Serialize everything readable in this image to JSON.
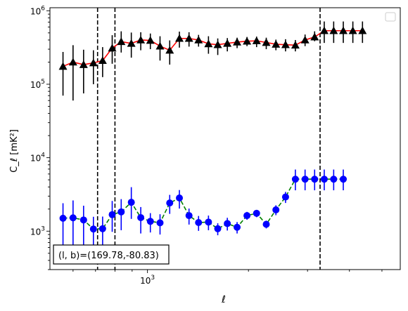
{
  "chart_data": {
    "type": "scatter",
    "xlabel": "ℓ",
    "ylabel": "C_ℓ [mK²]",
    "xscale": "log",
    "yscale": "log",
    "xlim": [
      512,
      5670
    ],
    "ylim": [
      300,
      1100000
    ],
    "xticks": [
      {
        "value": 1000,
        "base": "10",
        "exp": "3"
      }
    ],
    "yticks": [
      {
        "value": 1000,
        "base": "10",
        "exp": "3"
      },
      {
        "value": 10000,
        "base": "10",
        "exp": "4"
      },
      {
        "value": 100000,
        "base": "10",
        "exp": "5"
      },
      {
        "value": 1000000,
        "base": "10",
        "exp": "6"
      }
    ],
    "vlines": [
      710,
      800,
      3270
    ],
    "annotation": "(l, b)=(169.78,-80.83)",
    "legend": "top-right",
    "series": [
      {
        "marker": "triangle",
        "marker_color": "#000000",
        "line_color": "#ff0000",
        "line_style": "solid",
        "x": [
          560,
          600,
          645,
          690,
          735,
          785,
          835,
          895,
          955,
          1020,
          1090,
          1165,
          1245,
          1330,
          1420,
          1520,
          1620,
          1730,
          1850,
          1980,
          2115,
          2260,
          2415,
          2580,
          2760,
          2950,
          3150,
          3365,
          3590,
          3835,
          4095,
          4375
        ],
        "y": [
          175000,
          200000,
          185000,
          195000,
          210000,
          310000,
          380000,
          360000,
          400000,
          395000,
          330000,
          290000,
          420000,
          420000,
          400000,
          355000,
          345000,
          360000,
          375000,
          385000,
          390000,
          370000,
          350000,
          345000,
          340000,
          400000,
          440000,
          535000,
          535000,
          535000,
          535000,
          535000
        ],
        "err_low": [
          105000,
          140000,
          110000,
          95000,
          85000,
          120000,
          110000,
          130000,
          110000,
          95000,
          120000,
          105000,
          105000,
          95000,
          75000,
          95000,
          95000,
          80000,
          65000,
          55000,
          70000,
          70000,
          60000,
          65000,
          60000,
          70000,
          55000,
          170000,
          170000,
          170000,
          170000,
          170000
        ],
        "err_high": [
          100000,
          140000,
          110000,
          95000,
          110000,
          155000,
          145000,
          145000,
          110000,
          95000,
          120000,
          105000,
          100000,
          90000,
          70000,
          95000,
          75000,
          65000,
          55000,
          55000,
          55000,
          60000,
          55000,
          65000,
          60000,
          75000,
          85000,
          180000,
          180000,
          180000,
          180000,
          180000
        ]
      },
      {
        "marker": "circle",
        "marker_color": "#0000ff",
        "line_color": "#008000",
        "line_style": "dashed",
        "x": [
          560,
          600,
          645,
          690,
          735,
          785,
          835,
          895,
          955,
          1020,
          1090,
          1165,
          1245,
          1330,
          1420,
          1520,
          1620,
          1730,
          1850,
          1980,
          2115,
          2260,
          2415,
          2580,
          2760,
          2950,
          3150,
          3365,
          3590,
          3835
        ],
        "y": [
          1500,
          1520,
          1420,
          1070,
          1080,
          1680,
          1830,
          2470,
          1530,
          1360,
          1300,
          2420,
          2830,
          1630,
          1310,
          1330,
          1080,
          1270,
          1130,
          1630,
          1750,
          1240,
          1950,
          2920,
          5100,
          5100,
          5100,
          5100,
          5100,
          5100
        ],
        "err_low": [
          900,
          900,
          800,
          500,
          500,
          700,
          800,
          1000,
          600,
          400,
          400,
          700,
          800,
          400,
          300,
          300,
          200,
          250,
          200,
          200,
          200,
          150,
          300,
          500,
          1500,
          1500,
          1500,
          1500,
          1500,
          1500
        ],
        "err_high": [
          900,
          1100,
          800,
          500,
          500,
          900,
          900,
          1500,
          600,
          400,
          400,
          700,
          800,
          400,
          300,
          300,
          200,
          250,
          200,
          200,
          200,
          150,
          300,
          500,
          1800,
          1800,
          1800,
          1800,
          1800,
          1800
        ]
      }
    ]
  }
}
